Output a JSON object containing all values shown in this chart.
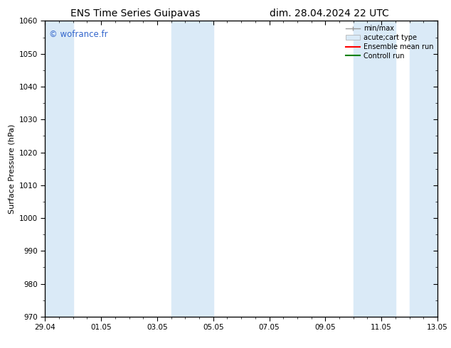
{
  "title_left": "ENS Time Series Guipavas",
  "title_right": "dim. 28.04.2024 22 UTC",
  "ylabel": "Surface Pressure (hPa)",
  "ylim": [
    970,
    1060
  ],
  "yticks": [
    970,
    980,
    990,
    1000,
    1010,
    1020,
    1030,
    1040,
    1050,
    1060
  ],
  "xlim_start": 0,
  "xlim_end": 14,
  "xtick_labels": [
    "29.04",
    "01.05",
    "03.05",
    "05.05",
    "07.05",
    "09.05",
    "11.05",
    "13.05"
  ],
  "xtick_positions": [
    0,
    2,
    4,
    6,
    8,
    10,
    12,
    14
  ],
  "shaded_regions": [
    {
      "xmin": 0.0,
      "xmax": 1.0,
      "color": "#daeaf7"
    },
    {
      "xmin": 4.5,
      "xmax": 6.0,
      "color": "#daeaf7"
    },
    {
      "xmin": 11.0,
      "xmax": 12.5,
      "color": "#daeaf7"
    },
    {
      "xmin": 13.0,
      "xmax": 14.0,
      "color": "#daeaf7"
    }
  ],
  "watermark": "© wofrance.fr",
  "watermark_color": "#3366cc",
  "legend_entries": [
    {
      "label": "min/max",
      "color": "#999999",
      "lw": 1.0,
      "style": "line_with_caps"
    },
    {
      "label": "acute;cart type",
      "color": "#daeaf7",
      "lw": 8,
      "style": "filled"
    },
    {
      "label": "Ensemble mean run",
      "color": "red",
      "lw": 1.5,
      "style": "line"
    },
    {
      "label": "Controll run",
      "color": "green",
      "lw": 1.5,
      "style": "line"
    }
  ],
  "bg_color": "#ffffff",
  "tick_fontsize": 7.5,
  "ylabel_fontsize": 8,
  "title_fontsize": 10,
  "watermark_fontsize": 8.5,
  "legend_fontsize": 7
}
